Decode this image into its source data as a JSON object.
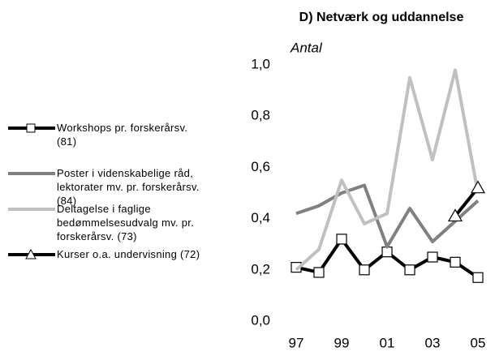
{
  "chart_data": {
    "type": "line",
    "title": "D) Netværk og uddannelse",
    "subtitle": "Antal",
    "categories": [
      "97",
      null,
      "99",
      null,
      "01",
      null,
      "03",
      null,
      "05"
    ],
    "series": [
      {
        "name": "Workshops pr. forskerårsv. (81)",
        "color": "#000000",
        "marker": "square",
        "values": [
          0.21,
          0.19,
          0.32,
          0.2,
          0.27,
          0.2,
          0.25,
          0.23,
          0.17
        ]
      },
      {
        "name": "Poster i videnskabelige råd, lektorater mv. pr. forskerårsv. (84)",
        "color": "#808080",
        "values": [
          0.42,
          0.45,
          0.5,
          0.53,
          0.29,
          0.44,
          0.31,
          0.39,
          0.47
        ]
      },
      {
        "name": "Deltagelse i faglige bedømmelsesudvalg mv. pr. forskerårsv. (73)",
        "color": "#c0c0c0",
        "values": [
          0.2,
          0.28,
          0.55,
          0.38,
          0.42,
          0.95,
          0.63,
          0.98,
          0.5
        ]
      },
      {
        "name": "Kurser o.a. undervisning (72)",
        "color": "#000000",
        "marker": "triangle",
        "values": [
          null,
          null,
          null,
          null,
          null,
          null,
          null,
          0.41,
          0.52
        ]
      }
    ],
    "ylim": [
      0,
      1.0
    ],
    "yticks": [
      {
        "value": 0,
        "label": "0,0"
      },
      {
        "value": 0.2,
        "label": "0,2"
      },
      {
        "value": 0.4,
        "label": "0,4"
      },
      {
        "value": 0.6,
        "label": "0,6"
      },
      {
        "value": 0.8,
        "label": "0,8"
      },
      {
        "value": 1.0,
        "label": "1,0"
      }
    ]
  }
}
